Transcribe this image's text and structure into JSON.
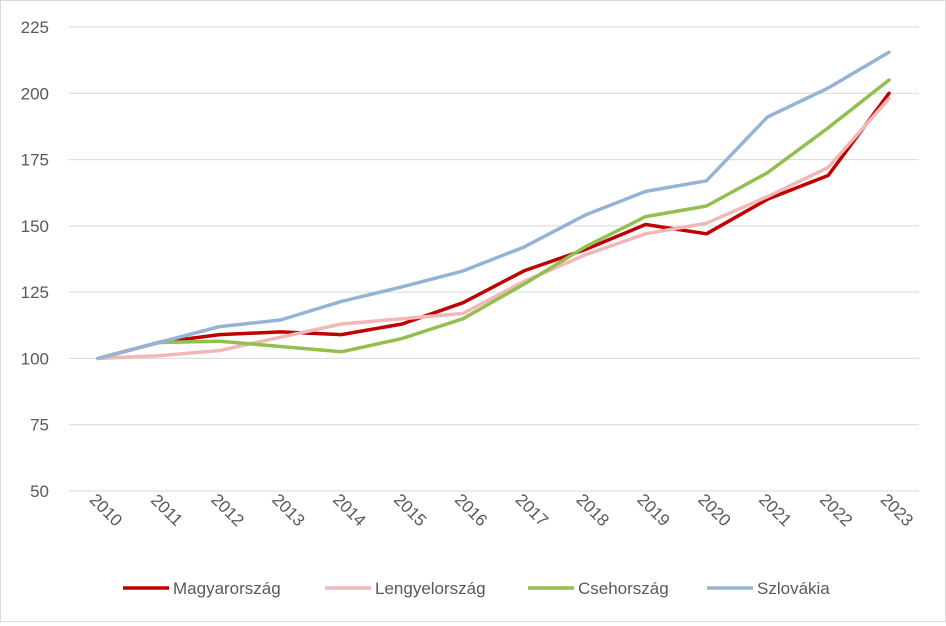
{
  "chart_data": {
    "type": "line",
    "title": "",
    "xlabel": "",
    "ylabel": "",
    "x": [
      "2010",
      "2011",
      "2012",
      "2013",
      "2014",
      "2015",
      "2016",
      "2017",
      "2018",
      "2019",
      "2020",
      "2021",
      "2022",
      "2023"
    ],
    "ylim": [
      50,
      225
    ],
    "yticks": [
      50,
      75,
      100,
      125,
      150,
      175,
      200,
      225
    ],
    "grid": "horizontal",
    "legend": "bottom",
    "series": [
      {
        "name": "Magyarország",
        "color": "#c00000",
        "values": [
          100,
          106,
          109,
          110,
          109,
          113,
          121,
          133,
          141,
          150.5,
          147,
          160,
          169,
          200
        ]
      },
      {
        "name": "Lengyelország",
        "color": "#f2b8b8",
        "values": [
          100,
          101,
          103,
          108,
          113,
          115,
          117,
          129,
          139,
          147,
          151,
          161,
          172,
          198
        ]
      },
      {
        "name": "Csehország",
        "color": "#92c050",
        "values": [
          100,
          106,
          106.5,
          104.5,
          102.5,
          107.5,
          115,
          128,
          142,
          153.5,
          157.5,
          170,
          187,
          205
        ]
      },
      {
        "name": "Szlovákia",
        "color": "#95b3d7",
        "values": [
          100,
          106,
          112,
          114.5,
          121.5,
          127,
          133,
          142,
          154,
          163,
          167,
          191,
          202,
          215.5
        ]
      }
    ]
  }
}
